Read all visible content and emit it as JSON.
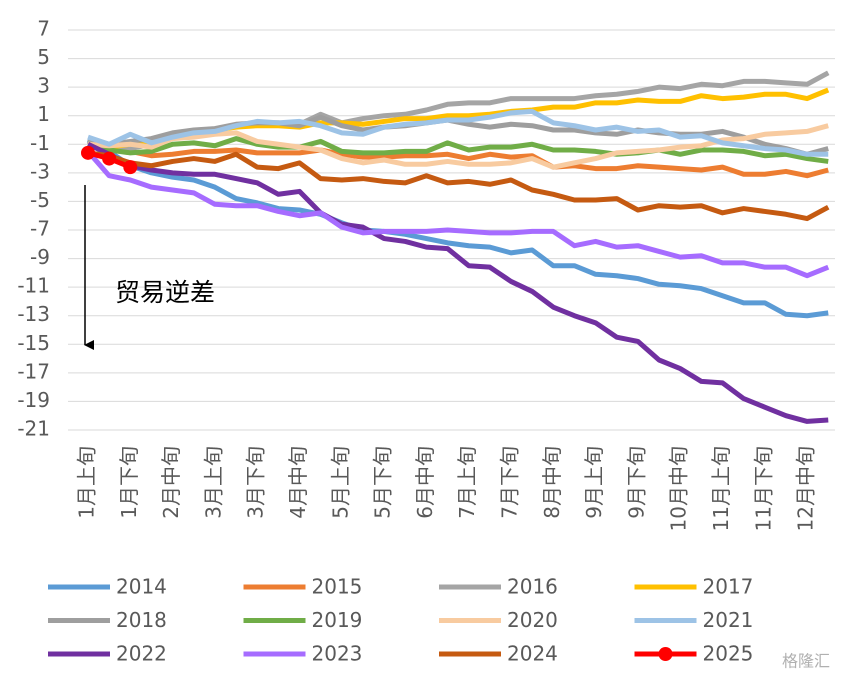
{
  "chart_data": {
    "type": "line",
    "categories": [
      "1月上旬",
      null,
      "1月下旬",
      null,
      "2月中旬",
      null,
      "3月上旬",
      null,
      "3月下旬",
      null,
      "4月中旬",
      null,
      "5月上旬",
      null,
      "5月下旬",
      null,
      "6月中旬",
      null,
      "7月上旬",
      null,
      "7月下旬",
      null,
      "8月中旬",
      null,
      "9月上旬",
      null,
      "9月下旬",
      null,
      "10月中旬",
      null,
      "11月上旬",
      null,
      "11月下旬",
      null,
      "12月中旬",
      null
    ],
    "ylim": [
      -21,
      7
    ],
    "yticks": [
      -21,
      -19,
      -17,
      -15,
      -13,
      -11,
      -9,
      -7,
      -5,
      -3,
      -1,
      1,
      3,
      5,
      7
    ],
    "grid": true,
    "annotation": "贸易逆差",
    "watermark": "格隆汇",
    "series": [
      {
        "name": "2014",
        "color": "#5b9bd5",
        "values": [
          -0.7,
          -1.5,
          -2.5,
          -3.0,
          -3.3,
          -3.5,
          -4.0,
          -4.8,
          -5.1,
          -5.5,
          -5.6,
          -5.9,
          -6.5,
          -7.0,
          -7.1,
          -7.3,
          -7.6,
          -7.9,
          -8.1,
          -8.2,
          -8.6,
          -8.4,
          -9.5,
          -9.5,
          -10.1,
          -10.2,
          -10.4,
          -10.8,
          -10.9,
          -11.1,
          -11.6,
          -12.1,
          -12.1,
          -12.9,
          -13.0,
          -12.8
        ]
      },
      {
        "name": "2015",
        "color": "#ed7d31",
        "values": [
          -0.8,
          -1.3,
          -1.5,
          -1.8,
          -1.7,
          -1.5,
          -1.5,
          -1.4,
          -1.6,
          -1.6,
          -1.6,
          -1.4,
          -1.7,
          -1.9,
          -1.9,
          -1.8,
          -1.8,
          -1.7,
          -2.0,
          -1.7,
          -1.9,
          -1.8,
          -2.6,
          -2.5,
          -2.7,
          -2.7,
          -2.5,
          -2.6,
          -2.7,
          -2.8,
          -2.6,
          -3.1,
          -3.1,
          -2.9,
          -3.2,
          -2.8
        ]
      },
      {
        "name": "2016",
        "color": "#a5a5a5",
        "values": [
          -0.8,
          -1.2,
          -1.3,
          -1.0,
          -0.5,
          -0.2,
          0.0,
          0.3,
          0.5,
          0.5,
          0.4,
          1.1,
          0.5,
          0.8,
          1.0,
          1.1,
          1.4,
          1.8,
          1.9,
          1.9,
          2.2,
          2.2,
          2.2,
          2.2,
          2.4,
          2.5,
          2.7,
          3.0,
          2.9,
          3.2,
          3.1,
          3.4,
          3.4,
          3.3,
          3.2,
          4.0
        ]
      },
      {
        "name": "2017",
        "color": "#ffc000",
        "values": [
          -1.0,
          -1.2,
          -1.0,
          -0.8,
          -0.5,
          -0.2,
          0.0,
          0.2,
          0.3,
          0.3,
          0.2,
          0.5,
          0.5,
          0.4,
          0.6,
          0.8,
          0.8,
          1.0,
          1.0,
          1.1,
          1.3,
          1.4,
          1.6,
          1.6,
          1.9,
          1.9,
          2.1,
          2.0,
          2.0,
          2.4,
          2.2,
          2.3,
          2.5,
          2.5,
          2.2,
          2.8
        ]
      },
      {
        "name": "2018",
        "color": "#9e9e9e",
        "values": [
          -0.6,
          -1.0,
          -0.8,
          -0.6,
          -0.2,
          0.0,
          0.1,
          0.4,
          0.5,
          0.5,
          0.3,
          0.9,
          0.3,
          0.0,
          0.2,
          0.3,
          0.5,
          0.7,
          0.4,
          0.2,
          0.4,
          0.3,
          0.0,
          0.0,
          -0.2,
          -0.3,
          0.0,
          -0.2,
          -0.3,
          -0.3,
          -0.1,
          -0.5,
          -1.0,
          -1.3,
          -1.7,
          -1.3
        ]
      },
      {
        "name": "2019",
        "color": "#70ad47",
        "values": [
          -1.0,
          -1.4,
          -1.6,
          -1.5,
          -1.0,
          -0.9,
          -1.1,
          -0.6,
          -1.0,
          -1.2,
          -1.2,
          -0.8,
          -1.5,
          -1.6,
          -1.6,
          -1.5,
          -1.5,
          -0.9,
          -1.4,
          -1.2,
          -1.2,
          -1.0,
          -1.4,
          -1.4,
          -1.5,
          -1.7,
          -1.6,
          -1.4,
          -1.7,
          -1.4,
          -1.4,
          -1.5,
          -1.8,
          -1.7,
          -2.0,
          -2.2
        ]
      },
      {
        "name": "2020",
        "color": "#f8cba0",
        "values": [
          -1.0,
          -1.1,
          -1.0,
          -1.2,
          -0.6,
          -0.5,
          -0.3,
          -0.2,
          -0.8,
          -1.0,
          -1.2,
          -1.4,
          -2.0,
          -2.3,
          -2.1,
          -2.4,
          -2.4,
          -2.2,
          -2.4,
          -2.4,
          -2.3,
          -2.0,
          -2.6,
          -2.3,
          -2.0,
          -1.6,
          -1.5,
          -1.4,
          -1.2,
          -1.1,
          -0.7,
          -0.6,
          -0.3,
          -0.2,
          -0.1,
          0.3
        ]
      },
      {
        "name": "2021",
        "color": "#9dc3e6",
        "values": [
          -0.5,
          -1.0,
          -0.3,
          -0.9,
          -0.5,
          -0.2,
          -0.1,
          0.3,
          0.6,
          0.5,
          0.6,
          0.3,
          -0.2,
          -0.3,
          0.2,
          0.4,
          0.5,
          0.7,
          0.7,
          0.9,
          1.2,
          1.3,
          0.5,
          0.3,
          0.0,
          0.2,
          -0.1,
          0.0,
          -0.5,
          -0.4,
          -0.9,
          -1.1,
          -1.3,
          -1.4,
          -1.7,
          -1.7
        ]
      },
      {
        "name": "2022",
        "color": "#7030a0",
        "values": [
          -1.0,
          -1.7,
          -2.5,
          -2.8,
          -3.0,
          -3.1,
          -3.1,
          -3.4,
          -3.7,
          -4.5,
          -4.3,
          -5.8,
          -6.6,
          -6.8,
          -7.6,
          -7.8,
          -8.2,
          -8.3,
          -9.5,
          -9.6,
          -10.6,
          -11.3,
          -12.4,
          -13.0,
          -13.5,
          -14.5,
          -14.8,
          -16.1,
          -16.7,
          -17.6,
          -17.7,
          -18.8,
          -19.4,
          -20.0,
          -20.4,
          -20.3
        ]
      },
      {
        "name": "2023",
        "color": "#a66cff",
        "values": [
          -1.5,
          -3.2,
          -3.5,
          -4.0,
          -4.2,
          -4.4,
          -5.2,
          -5.3,
          -5.3,
          -5.7,
          -6.0,
          -5.8,
          -6.8,
          -7.2,
          -7.1,
          -7.1,
          -7.1,
          -7.0,
          -7.1,
          -7.2,
          -7.2,
          -7.1,
          -7.1,
          -8.1,
          -7.8,
          -8.2,
          -8.1,
          -8.5,
          -8.9,
          -8.8,
          -9.3,
          -9.3,
          -9.6,
          -9.6,
          -10.2,
          -9.6
        ]
      },
      {
        "name": "2024",
        "color": "#c55a11",
        "values": [
          -1.6,
          -1.8,
          -2.3,
          -2.5,
          -2.2,
          -2.0,
          -2.2,
          -1.7,
          -2.6,
          -2.7,
          -2.3,
          -3.4,
          -3.5,
          -3.4,
          -3.6,
          -3.7,
          -3.2,
          -3.7,
          -3.6,
          -3.8,
          -3.5,
          -4.2,
          -4.5,
          -4.9,
          -4.9,
          -4.8,
          -5.6,
          -5.3,
          -5.4,
          -5.3,
          -5.8,
          -5.5,
          -5.7,
          -5.9,
          -6.2,
          -5.4
        ]
      },
      {
        "name": "2025",
        "color": "#ff0000",
        "markers": true,
        "values": [
          -1.6,
          -2.0,
          -2.6,
          null,
          null,
          null,
          null,
          null,
          null,
          null,
          null,
          null,
          null,
          null,
          null,
          null,
          null,
          null,
          null,
          null,
          null,
          null,
          null,
          null,
          null,
          null,
          null,
          null,
          null,
          null,
          null,
          null,
          null,
          null,
          null,
          null
        ]
      }
    ]
  }
}
